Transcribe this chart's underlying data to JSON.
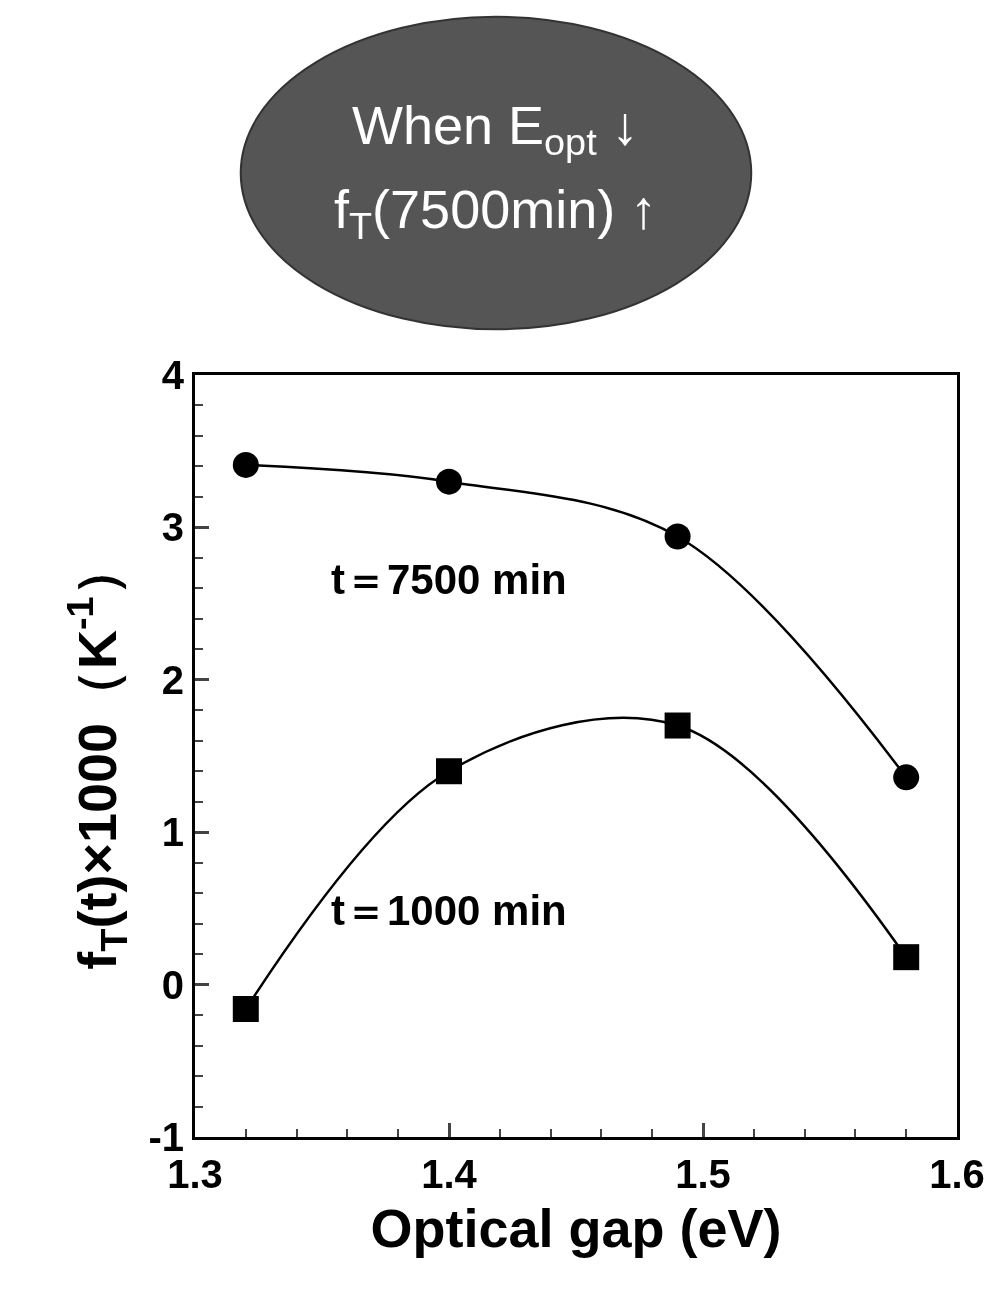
{
  "chart_data": {
    "type": "line",
    "xlabel": "Optical gap (eV)",
    "ylabel": "f$_{T}$(t)×1000（K$^{-1}$）",
    "annotations": [
      "When E$_{opt}$ ↓",
      "f$_{T}$(7500min) ↑"
    ],
    "series": [
      {
        "name": "t＝7500 min",
        "color": "#000000",
        "marker": "circle",
        "x": [
          1.32,
          1.4,
          1.49,
          1.58
        ],
        "values": [
          3.41,
          3.3,
          2.94,
          1.36
        ]
      },
      {
        "name": "t＝1000 min",
        "color": "#000000",
        "marker": "square",
        "x": [
          1.32,
          1.4,
          1.49,
          1.58
        ],
        "values": [
          -0.16,
          1.4,
          1.7,
          0.18
        ]
      }
    ],
    "xlim": [
      1.3,
      1.6
    ],
    "ylim": [
      -1,
      4
    ],
    "xticks": [
      1.3,
      {
        "value": 1.32,
        "label": null
      },
      {
        "value": 1.34,
        "label": null
      },
      {
        "value": 1.36,
        "label": null
      },
      {
        "value": 1.38,
        "label": null
      },
      1.4,
      {
        "value": 1.42,
        "label": null
      },
      {
        "value": 1.44,
        "label": null
      },
      {
        "value": 1.46,
        "label": null
      },
      {
        "value": 1.48,
        "label": null
      },
      1.5,
      {
        "value": 1.52,
        "label": null
      },
      {
        "value": 1.54,
        "label": null
      },
      {
        "value": 1.56,
        "label": null
      },
      {
        "value": 1.58,
        "label": null
      },
      1.6
    ],
    "yticks": [
      -1,
      {
        "value": -0.8,
        "label": null
      },
      {
        "value": -0.6,
        "label": null
      },
      {
        "value": -0.4,
        "label": null
      },
      {
        "value": -0.2,
        "label": null
      },
      0,
      {
        "value": 0.2,
        "label": null
      },
      {
        "value": 0.4,
        "label": null
      },
      {
        "value": 0.6,
        "label": null
      },
      {
        "value": 0.8,
        "label": null
      },
      1,
      {
        "value": 1.2,
        "label": null
      },
      {
        "value": 1.4,
        "label": null
      },
      {
        "value": 1.6,
        "label": null
      },
      {
        "value": 1.8,
        "label": null
      },
      2,
      {
        "value": 2.2,
        "label": null
      },
      {
        "value": 2.4,
        "label": null
      },
      {
        "value": 2.6,
        "label": null
      },
      {
        "value": 2.8,
        "label": null
      },
      3,
      {
        "value": 3.2,
        "label": null
      },
      {
        "value": 3.4,
        "label": null
      },
      {
        "value": 3.6,
        "label": null
      },
      {
        "value": 3.8,
        "label": null
      },
      4
    ],
    "grid": false,
    "legend": false,
    "line_style": "solid"
  }
}
